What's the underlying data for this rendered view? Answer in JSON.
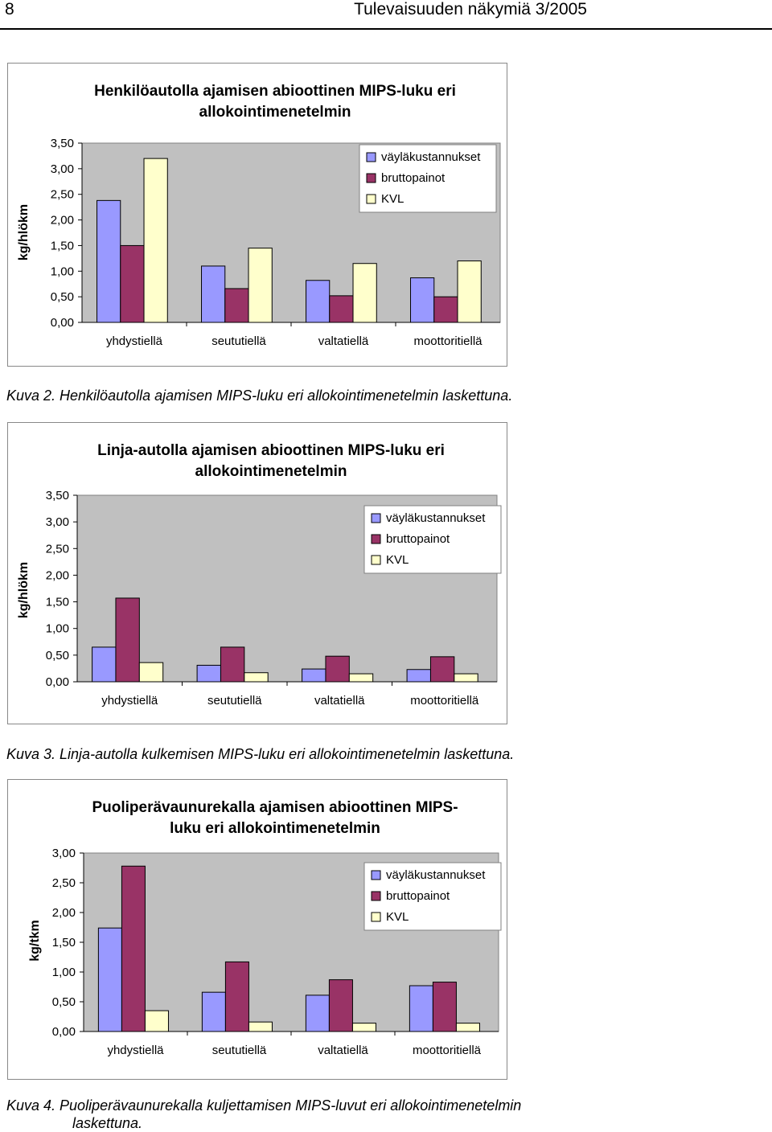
{
  "header": {
    "page_number": "8",
    "publication": "Tulevaisuuden näkymiä 3/2005"
  },
  "legend_labels": [
    "väyläkustannukset",
    "bruttopainot",
    "KVL"
  ],
  "colors": {
    "series": [
      "#9999ff",
      "#993366",
      "#ffffcc"
    ],
    "plot_bg": "#c0c0c0"
  },
  "captions": [
    "Kuva 2. Henkilöautolla ajamisen MIPS-luku eri allokointimenetelmin laskettuna.",
    "Kuva 3. Linja-autolla kulkemisen MIPS-luku eri allokointimenetelmin laskettuna.",
    "Kuva 4.  Puoliperävaunurekalla  kuljettamisen  MIPS-luvut  eri  allokointimenetelmin",
    "laskettuna."
  ],
  "chart_data": [
    {
      "type": "bar",
      "title": "Henkilöautolla ajamisen abioottinen MIPS-luku eri allokointimenetelmin",
      "title_lines": [
        "Henkilöautolla ajamisen abioottinen MIPS-luku eri",
        "allokointimenetelmin"
      ],
      "ylabel": "kg/hlökm",
      "xlabel": "",
      "categories": [
        "yhdystiellä",
        "seututiellä",
        "valtatiellä",
        "moottoritiellä"
      ],
      "series": [
        {
          "name": "väyläkustannukset",
          "values": [
            2.38,
            1.1,
            0.82,
            0.87
          ]
        },
        {
          "name": "bruttopainot",
          "values": [
            1.5,
            0.66,
            0.52,
            0.5
          ]
        },
        {
          "name": "KVL",
          "values": [
            3.2,
            1.45,
            1.15,
            1.2
          ]
        }
      ],
      "ylim": [
        0,
        3.5
      ],
      "yticks": [
        "0,00",
        "0,50",
        "1,00",
        "1,50",
        "2,00",
        "2,50",
        "3,00",
        "3,50"
      ],
      "legend": "top-right",
      "grid": false
    },
    {
      "type": "bar",
      "title": "Linja-autolla ajamisen abioottinen MIPS-luku eri allokointimenetelmin",
      "title_lines": [
        "Linja-autolla ajamisen abioottinen MIPS-luku eri",
        "allokointimenetelmin"
      ],
      "ylabel": "kg/hlökm",
      "xlabel": "",
      "categories": [
        "yhdystiellä",
        "seututiellä",
        "valtatiellä",
        "moottoritiellä"
      ],
      "series": [
        {
          "name": "väyläkustannukset",
          "values": [
            0.65,
            0.31,
            0.24,
            0.23
          ]
        },
        {
          "name": "bruttopainot",
          "values": [
            1.57,
            0.65,
            0.48,
            0.47
          ]
        },
        {
          "name": "KVL",
          "values": [
            0.36,
            0.17,
            0.15,
            0.15
          ]
        }
      ],
      "ylim": [
        0,
        3.5
      ],
      "yticks": [
        "0,00",
        "0,50",
        "1,00",
        "1,50",
        "2,00",
        "2,50",
        "3,00",
        "3,50"
      ],
      "legend": "top-right",
      "grid": false
    },
    {
      "type": "bar",
      "title": "Puoliperävaunurekalla ajamisen abioottinen MIPS-luku eri allokointimenetelmin",
      "title_lines": [
        "Puoliperävaunurekalla ajamisen abioottinen MIPS-",
        "luku eri allokointimenetelmin"
      ],
      "ylabel": "kg/tkm",
      "xlabel": "",
      "categories": [
        "yhdystiellä",
        "seututiellä",
        "valtatiellä",
        "moottoritiellä"
      ],
      "series": [
        {
          "name": "väyläkustannukset",
          "values": [
            1.74,
            0.66,
            0.61,
            0.77
          ]
        },
        {
          "name": "bruttopainot",
          "values": [
            2.78,
            1.17,
            0.87,
            0.83
          ]
        },
        {
          "name": "KVL",
          "values": [
            0.35,
            0.16,
            0.14,
            0.14
          ]
        }
      ],
      "ylim": [
        0,
        3.0
      ],
      "yticks": [
        "0,00",
        "0,50",
        "1,00",
        "1,50",
        "2,00",
        "2,50",
        "3,00"
      ],
      "legend": "top-right",
      "grid": false
    }
  ]
}
